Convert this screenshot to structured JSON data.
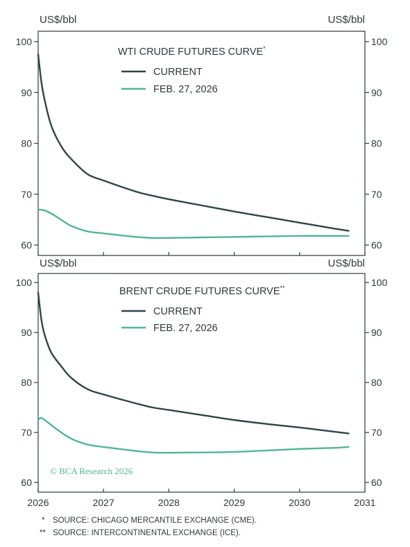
{
  "footnotes": [
    {
      "marker": "*",
      "text": "SOURCE: CHICAGO MERCANTILE EXCHANGE (CME)."
    },
    {
      "marker": "**",
      "text": "SOURCE: INTERCONTINENTAL EXCHANGE (ICE)."
    }
  ],
  "watermark": "© BCA Research 2026",
  "colors": {
    "current": "#2e4448",
    "feb": "#4fb59b",
    "axis": "#2b3a3d"
  },
  "chart_data": [
    {
      "type": "line",
      "title": "WTI CRUDE FUTURES CURVE",
      "title_marker": "*",
      "ylabel": "US$/bbl",
      "ylabel_right": "US$/bbl",
      "ylim": [
        60,
        100
      ],
      "yticks": [
        60,
        70,
        80,
        90,
        100
      ],
      "xlim": [
        2026,
        2031
      ],
      "legend": "top-center",
      "series": [
        {
          "name": "CURRENT",
          "color": "#2e4448",
          "x": [
            2026.0,
            2026.05,
            2026.1,
            2026.2,
            2026.35,
            2026.5,
            2026.75,
            2027.0,
            2027.5,
            2027.75,
            2028.0,
            2028.5,
            2029.0,
            2029.5,
            2030.0,
            2030.5,
            2030.75
          ],
          "y": [
            97.5,
            92.0,
            88.5,
            83.5,
            79.5,
            77.0,
            74.0,
            72.7,
            70.5,
            69.7,
            69.0,
            67.8,
            66.6,
            65.5,
            64.4,
            63.3,
            62.8
          ]
        },
        {
          "name": "FEB. 27, 2026",
          "color": "#4fb59b",
          "x": [
            2026.0,
            2026.1,
            2026.2,
            2026.35,
            2026.5,
            2026.75,
            2027.0,
            2027.5,
            2027.75,
            2028.0,
            2028.5,
            2029.0,
            2029.5,
            2030.0,
            2030.5,
            2030.75
          ],
          "y": [
            67.0,
            66.8,
            66.2,
            65.0,
            63.8,
            62.7,
            62.3,
            61.6,
            61.4,
            61.4,
            61.5,
            61.6,
            61.7,
            61.8,
            61.8,
            61.8
          ]
        }
      ]
    },
    {
      "type": "line",
      "title": "BRENT CRUDE FUTURES CURVE",
      "title_marker": "**",
      "ylabel": "US$/bbl",
      "ylabel_right": "US$/bbl",
      "ylim": [
        60,
        100
      ],
      "yticks": [
        60,
        70,
        80,
        90,
        100
      ],
      "xlim": [
        2026,
        2031
      ],
      "xticks": [
        2026,
        2027,
        2028,
        2029,
        2030,
        2031
      ],
      "legend": "top-center",
      "series": [
        {
          "name": "CURRENT",
          "color": "#2e4448",
          "x": [
            2026.0,
            2026.05,
            2026.1,
            2026.2,
            2026.35,
            2026.5,
            2026.75,
            2027.0,
            2027.5,
            2027.75,
            2028.0,
            2028.5,
            2029.0,
            2029.5,
            2030.0,
            2030.5,
            2030.75
          ],
          "y": [
            98.0,
            92.5,
            89.5,
            86.0,
            83.3,
            81.0,
            78.7,
            77.6,
            75.8,
            75.0,
            74.5,
            73.5,
            72.5,
            71.7,
            71.0,
            70.2,
            69.8
          ]
        },
        {
          "name": "FEB. 27, 2026",
          "color": "#4fb59b",
          "x": [
            2026.0,
            2026.05,
            2026.15,
            2026.3,
            2026.5,
            2026.75,
            2027.0,
            2027.5,
            2027.75,
            2028.0,
            2028.5,
            2029.0,
            2029.5,
            2030.0,
            2030.5,
            2030.75
          ],
          "y": [
            72.5,
            72.9,
            72.0,
            70.5,
            68.8,
            67.6,
            67.1,
            66.3,
            66.0,
            65.95,
            66.0,
            66.1,
            66.4,
            66.7,
            66.9,
            67.1
          ]
        }
      ]
    }
  ]
}
